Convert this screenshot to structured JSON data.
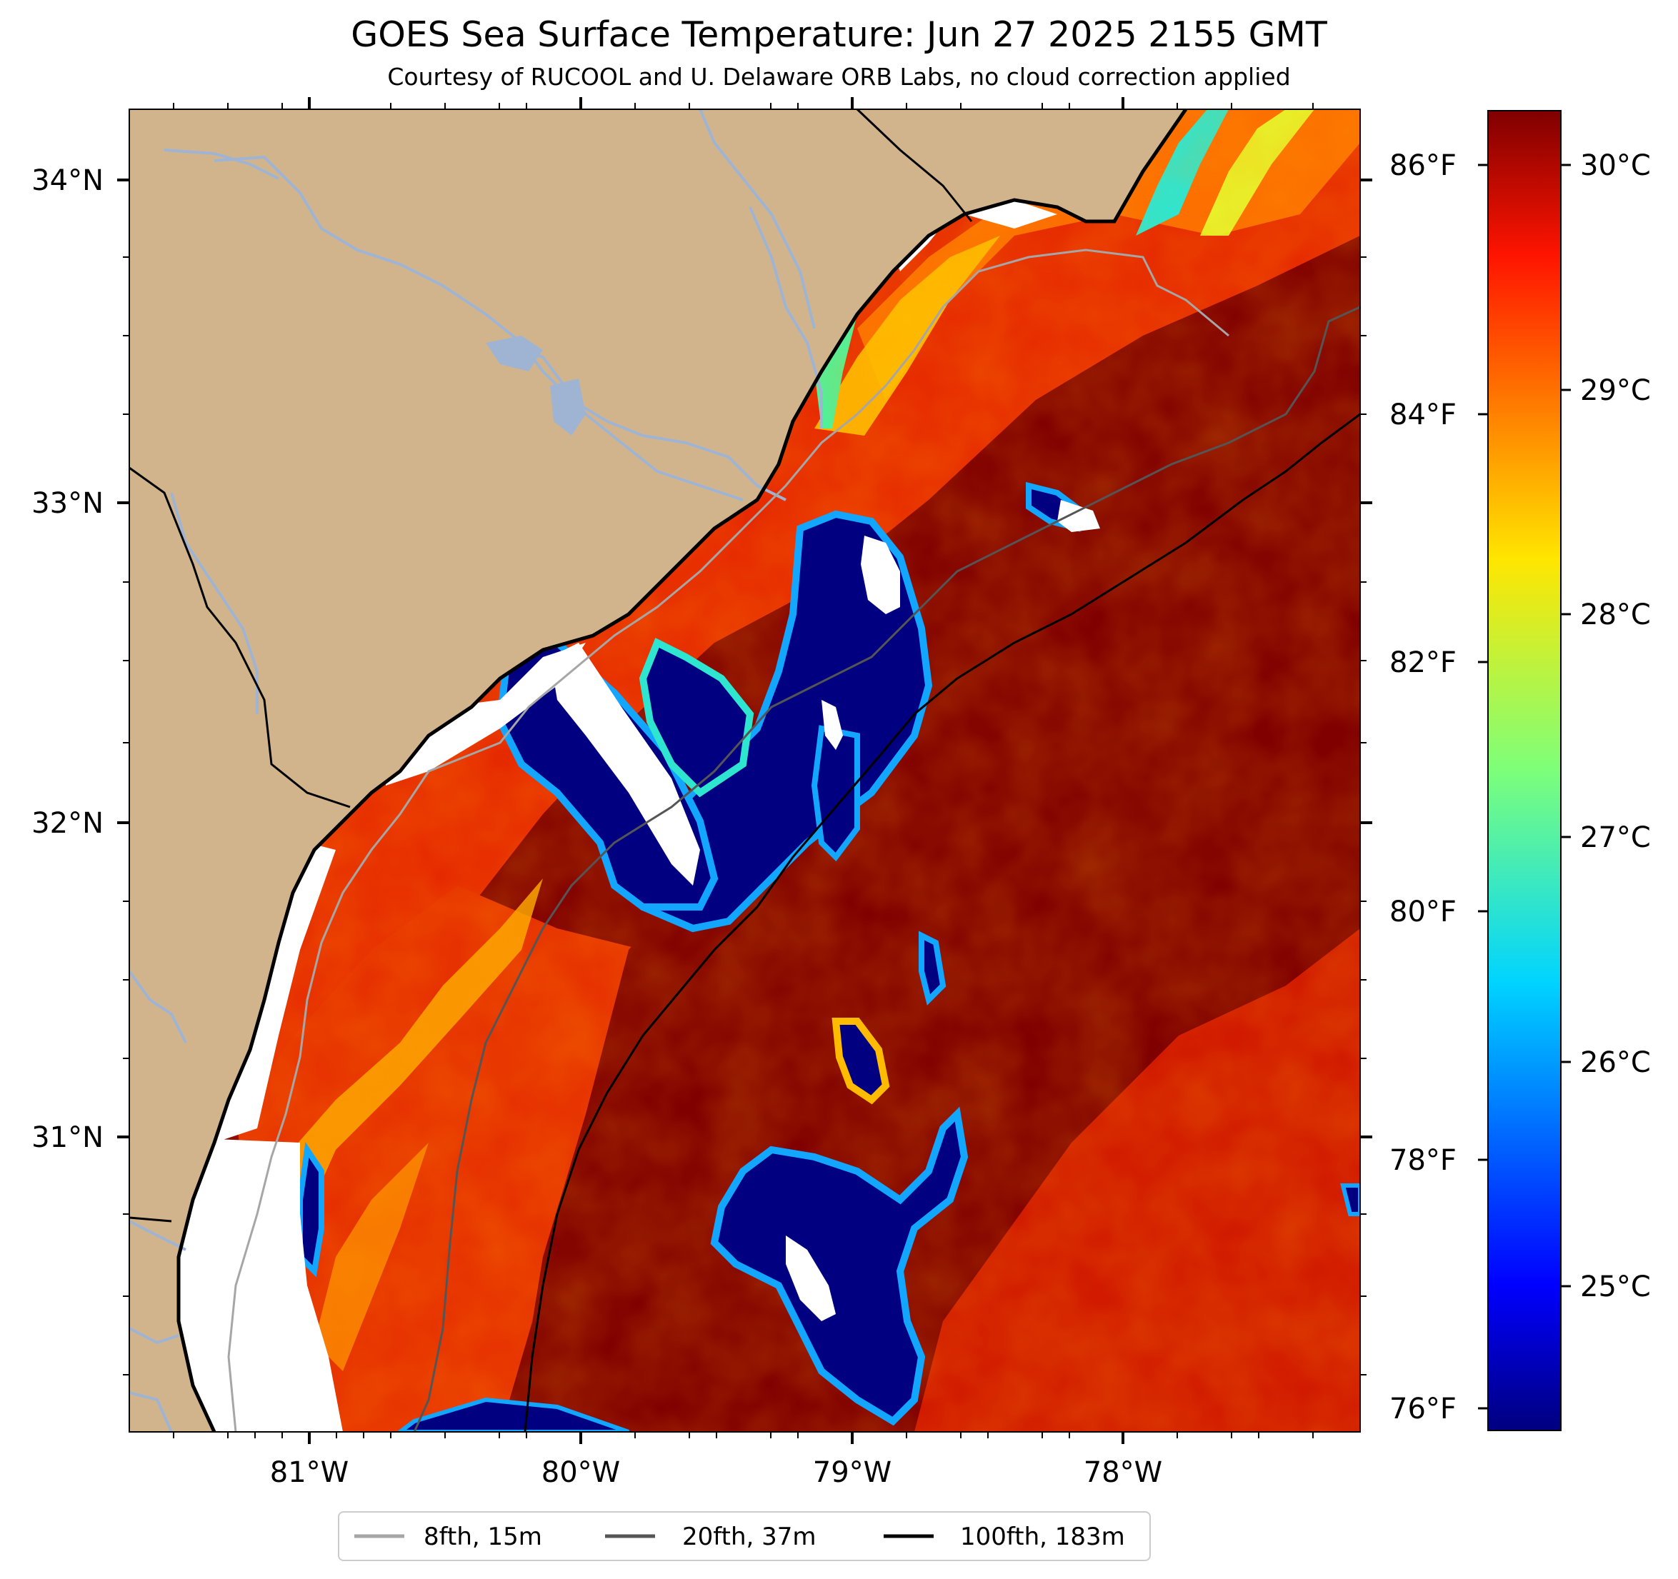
{
  "title": "GOES Sea Surface Temperature: Jun 27 2025 2155 GMT",
  "subtitle": "Courtesy of RUCOOL and U. Delaware ORB Labs, no cloud correction applied",
  "colors": {
    "land": "#d2b48c",
    "rivers": "#9fb4d3",
    "no_data": "#ffffff",
    "coastline": "#000000"
  },
  "map": {
    "lon_labels": [
      "81°W",
      "80°W",
      "79°W",
      "78°W"
    ],
    "lat_labels": [
      "34°N",
      "33°N",
      "32°N",
      "31°N"
    ]
  },
  "colorbar": {
    "colormap": "jet",
    "celsius_labels": [
      "30°C",
      "29°C",
      "28°C",
      "27°C",
      "26°C",
      "25°C"
    ],
    "fahrenheit_labels": [
      "86°F",
      "84°F",
      "82°F",
      "80°F",
      "78°F",
      "76°F"
    ]
  },
  "legend": {
    "entries": [
      {
        "label": "8fth, 15m",
        "color": "#a6a6a6"
      },
      {
        "label": "20fth, 37m",
        "color": "#555555"
      },
      {
        "label": "100fth, 183m",
        "color": "#000000"
      }
    ]
  }
}
